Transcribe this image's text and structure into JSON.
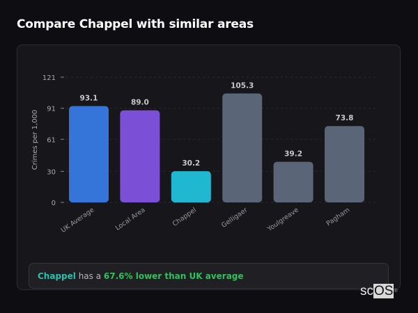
{
  "title": "Compare Chappel with similar areas",
  "chart_data": {
    "type": "bar",
    "categories": [
      "UK Average",
      "Local Area",
      "Chappel",
      "Gelligaer",
      "Youlgreave",
      "Pagham"
    ],
    "values": [
      93.1,
      89.0,
      30.2,
      105.3,
      39.2,
      73.8
    ],
    "data_labels": [
      "93.1",
      "89.0",
      "30.2",
      "105.3",
      "39.2",
      "73.8"
    ],
    "colors": [
      "#3574d8",
      "#7b4fd6",
      "#20b8d0",
      "#5a6577",
      "#5a6577",
      "#5a6577"
    ],
    "ylabel": "Crimes per 1,000",
    "xlabel": "",
    "yticks": [
      0,
      30,
      61,
      91,
      121
    ],
    "ylim": [
      0,
      121
    ],
    "grid": true,
    "legend": "none"
  },
  "summary": {
    "area": "Chappel",
    "middle": " has a ",
    "comparison": "67.6% lower than UK average"
  },
  "logo": {
    "text_a": "sc",
    "text_b": "OS",
    "mark": "®"
  }
}
